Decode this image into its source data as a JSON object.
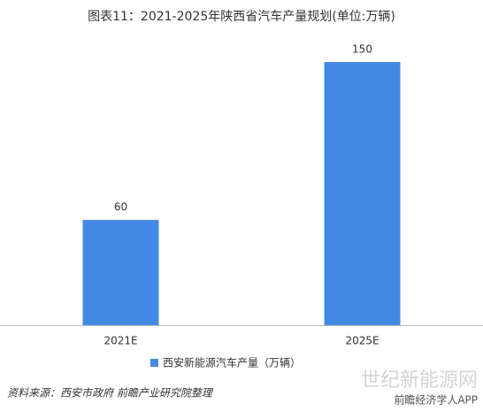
{
  "chart_data": {
    "type": "bar",
    "title": "图表11：2021-2025年陕西省汽车产量规划(单位:万辆)",
    "categories": [
      "2021E",
      "2025E"
    ],
    "series": [
      {
        "name": "西安新能源汽车产量（万辆）",
        "color": "#4389e3",
        "values": [
          60,
          150
        ]
      }
    ],
    "source": "资料来源：西安市政府 前瞻产业研究院整理",
    "footer_logo": "前瞻经济学人APP",
    "watermark": "世纪新能源网"
  }
}
